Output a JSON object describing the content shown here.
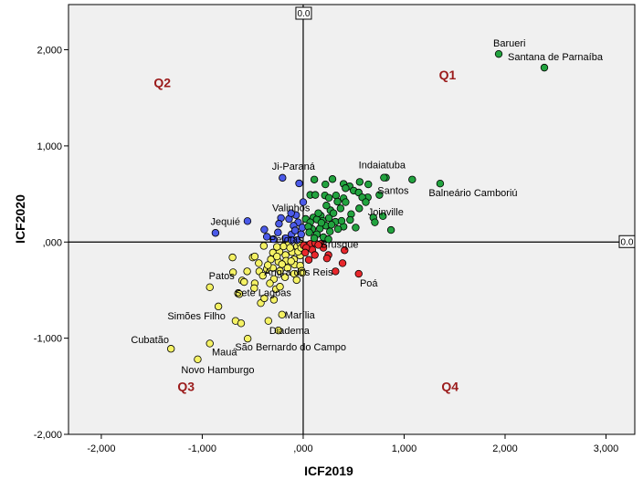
{
  "chart_data": {
    "type": "scatter",
    "xlabel": "ICF2019",
    "ylabel": "ICF2020",
    "xlim": [
      -2325,
      3285
    ],
    "ylim": [
      -2000,
      2470
    ],
    "xticks": [
      -2000,
      -1000,
      0,
      1000,
      2000,
      3000
    ],
    "xtick_labels": [
      "-2,000",
      "-1,000",
      ",000",
      "1,000",
      "2,000",
      "3,000"
    ],
    "yticks": [
      -2000,
      -1000,
      0,
      1000,
      2000
    ],
    "ytick_labels": [
      "-2,000",
      "-1,000",
      ",000",
      "1,000",
      "2,000"
    ],
    "grid": false,
    "reference_lines": {
      "x": 0,
      "y": 0,
      "x_label": "0.0",
      "y_label": "0.0"
    },
    "quadrant_labels": [
      {
        "text": "Q1",
        "x": 1430,
        "y": 1740
      },
      {
        "text": "Q2",
        "x": -1395,
        "y": 1660
      },
      {
        "text": "Q3",
        "x": -1160,
        "y": -1500
      },
      {
        "text": "Q4",
        "x": 1455,
        "y": -1500
      }
    ],
    "series": [
      {
        "quadrant": "Q3",
        "color": "#f5f264",
        "points": [
          [
            -390,
            -40
          ],
          [
            -700,
            -160
          ],
          [
            -500,
            -160
          ],
          [
            -480,
            -150
          ],
          [
            -695,
            -315
          ],
          [
            -555,
            -305
          ],
          [
            -605,
            -400
          ],
          [
            -585,
            -415
          ],
          [
            -440,
            -220
          ],
          [
            -435,
            -305
          ],
          [
            -645,
            -535
          ],
          [
            -480,
            -430
          ],
          [
            -485,
            -480
          ],
          [
            -420,
            -635
          ],
          [
            -385,
            -585
          ],
          [
            -290,
            -600
          ],
          [
            -270,
            -490
          ],
          [
            -230,
            -465
          ],
          [
            -670,
            -820
          ],
          [
            -615,
            -845
          ],
          [
            -345,
            -820
          ],
          [
            -300,
            -110
          ],
          [
            -235,
            -65
          ],
          [
            -175,
            -135
          ],
          [
            -110,
            -105
          ],
          [
            -60,
            -45
          ],
          [
            -320,
            -180
          ],
          [
            -245,
            -205
          ],
          [
            -170,
            -195
          ],
          [
            -90,
            -180
          ],
          [
            -30,
            -140
          ],
          [
            -300,
            -270
          ],
          [
            -230,
            -300
          ],
          [
            -155,
            -270
          ],
          [
            -85,
            -235
          ],
          [
            -30,
            -245
          ],
          [
            -360,
            -280
          ],
          [
            -290,
            -385
          ],
          [
            -180,
            -365
          ],
          [
            -90,
            -330
          ],
          [
            -65,
            -395
          ],
          [
            -235,
            -100
          ],
          [
            -195,
            -45
          ],
          [
            -140,
            -10
          ],
          [
            -50,
            -100
          ],
          [
            -30,
            -15
          ],
          [
            -130,
            -60
          ],
          [
            -260,
            -150
          ],
          [
            -210,
            -230
          ],
          [
            -120,
            -200
          ],
          [
            -350,
            -240
          ],
          [
            -15,
            -300
          ],
          [
            -20,
            -60
          ],
          [
            -400,
            -350
          ],
          [
            -330,
            -430
          ],
          [
            -260,
            -50
          ]
        ]
      },
      {
        "quadrant": "Q4",
        "color": "#e8282c",
        "points": [
          [
            5,
            -35
          ],
          [
            70,
            -20
          ],
          [
            175,
            -20
          ],
          [
            90,
            -80
          ],
          [
            115,
            -135
          ],
          [
            250,
            -135
          ],
          [
            235,
            -170
          ],
          [
            55,
            -185
          ],
          [
            410,
            -85
          ],
          [
            390,
            -220
          ],
          [
            320,
            -305
          ],
          [
            30,
            -60
          ],
          [
            120,
            -10
          ],
          [
            200,
            -60
          ],
          [
            20,
            -110
          ]
        ]
      },
      {
        "quadrant": "Q2",
        "color": "#4b5ae8",
        "points": [
          [
            -40,
            610
          ],
          [
            0,
            415
          ],
          [
            -70,
            280
          ],
          [
            -220,
            250
          ],
          [
            -240,
            190
          ],
          [
            -50,
            205
          ],
          [
            -95,
            170
          ],
          [
            -385,
            130
          ],
          [
            -360,
            55
          ],
          [
            -115,
            80
          ],
          [
            -20,
            80
          ],
          [
            -295,
            30
          ],
          [
            -175,
            40
          ],
          [
            -869,
            95
          ],
          [
            -140,
            240
          ],
          [
            -80,
            120
          ],
          [
            -60,
            20
          ],
          [
            -250,
            100
          ],
          [
            -10,
            150
          ]
        ]
      },
      {
        "quadrant": "Q1",
        "color": "#22a33f",
        "points": [
          [
            110,
            650
          ],
          [
            290,
            655
          ],
          [
            220,
            600
          ],
          [
            400,
            605
          ],
          [
            460,
            580
          ],
          [
            560,
            625
          ],
          [
            645,
            600
          ],
          [
            500,
            535
          ],
          [
            550,
            515
          ],
          [
            640,
            465
          ],
          [
            585,
            465
          ],
          [
            620,
            415
          ],
          [
            70,
            490
          ],
          [
            120,
            490
          ],
          [
            215,
            485
          ],
          [
            255,
            460
          ],
          [
            325,
            485
          ],
          [
            400,
            455
          ],
          [
            340,
            420
          ],
          [
            420,
            415
          ],
          [
            270,
            330
          ],
          [
            370,
            350
          ],
          [
            555,
            350
          ],
          [
            475,
            290
          ],
          [
            465,
            230
          ],
          [
            400,
            160
          ],
          [
            520,
            150
          ],
          [
            695,
            255
          ],
          [
            710,
            205
          ],
          [
            870,
            125
          ],
          [
            175,
            275
          ],
          [
            100,
            255
          ],
          [
            25,
            240
          ],
          [
            70,
            205
          ],
          [
            135,
            235
          ],
          [
            195,
            220
          ],
          [
            255,
            250
          ],
          [
            320,
            210
          ],
          [
            225,
            170
          ],
          [
            165,
            140
          ],
          [
            90,
            135
          ],
          [
            50,
            160
          ],
          [
            135,
            80
          ],
          [
            200,
            50
          ],
          [
            265,
            110
          ],
          [
            345,
            135
          ],
          [
            820,
            670
          ],
          [
            1080,
            650
          ],
          [
            150,
            300
          ],
          [
            300,
            300
          ],
          [
            230,
            380
          ],
          [
            420,
            560
          ],
          [
            180,
            200
          ],
          [
            280,
            180
          ],
          [
            380,
            220
          ],
          [
            60,
            100
          ],
          [
            110,
            40
          ],
          [
            250,
            30
          ]
        ]
      }
    ],
    "labeled_points": [
      {
        "label": "Barueri",
        "x": 1937,
        "y": 1956,
        "quadrant": "Q1"
      },
      {
        "label": "Santana de Parnaíba",
        "x": 2389,
        "y": 1814,
        "quadrant": "Q1"
      },
      {
        "label": "Indaiatuba",
        "x": 800,
        "y": 670,
        "quadrant": "Q1"
      },
      {
        "label": "Santos",
        "x": 755,
        "y": 490,
        "quadrant": "Q1"
      },
      {
        "label": "Balneário Camboriú",
        "x": 1357,
        "y": 608,
        "quadrant": "Q1"
      },
      {
        "label": "Joinville",
        "x": 790,
        "y": 270,
        "quadrant": "Q1"
      },
      {
        "label": "Ji-Paraná",
        "x": -205,
        "y": 668,
        "quadrant": "Q2"
      },
      {
        "label": "Valinhos",
        "x": -120,
        "y": 300,
        "quadrant": "Q2"
      },
      {
        "label": "Jequié",
        "x": -552,
        "y": 218,
        "quadrant": "Q2"
      },
      {
        "label": "Pelotas",
        "x": -115,
        "y": 20,
        "quadrant": "Q2"
      },
      {
        "label": "Brusque",
        "x": 150,
        "y": -30,
        "quadrant": "Q4"
      },
      {
        "label": "Angra dos Reis",
        "x": -10,
        "y": -320,
        "quadrant": "Q3"
      },
      {
        "label": "Poá",
        "x": 550,
        "y": -330,
        "quadrant": "Q4"
      },
      {
        "label": "Patos",
        "x": -925,
        "y": -470,
        "quadrant": "Q3"
      },
      {
        "label": "Sete Lagoas",
        "x": -633,
        "y": -541,
        "quadrant": "Q3"
      },
      {
        "label": "Simões Filho",
        "x": -840,
        "y": -670,
        "quadrant": "Q3"
      },
      {
        "label": "Marília",
        "x": -210,
        "y": -755,
        "quadrant": "Q3"
      },
      {
        "label": "Diadema",
        "x": -245,
        "y": -920,
        "quadrant": "Q3"
      },
      {
        "label": "São Bernardo do Campo",
        "x": -550,
        "y": -1005,
        "quadrant": "Q3"
      },
      {
        "label": "Mauá",
        "x": -925,
        "y": -1055,
        "quadrant": "Q3"
      },
      {
        "label": "Cubatão",
        "x": -1310,
        "y": -1110,
        "quadrant": "Q3"
      },
      {
        "label": "Novo Hamburgo",
        "x": -1045,
        "y": -1220,
        "quadrant": "Q3"
      }
    ]
  }
}
